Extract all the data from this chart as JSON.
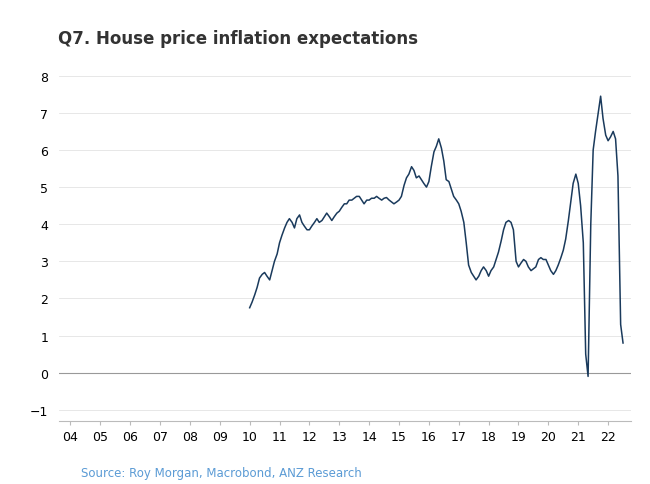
{
  "title": "Q7. House price inflation expectations",
  "source_text": "Source: Roy Morgan, Macrobond, ANZ Research",
  "line_color": "#1a3a5c",
  "background_color": "#ffffff",
  "ylim": [
    -1.3,
    8.5
  ],
  "yticks": [
    -1,
    0,
    1,
    2,
    3,
    4,
    5,
    6,
    7,
    8
  ],
  "xtick_labels": [
    "04",
    "05",
    "06",
    "07",
    "08",
    "09",
    "10",
    "11",
    "12",
    "13",
    "14",
    "15",
    "16",
    "17",
    "18",
    "19",
    "20",
    "21",
    "22"
  ],
  "xlim": [
    2003.6,
    2022.75
  ],
  "x_values": [
    2010.0,
    2010.08,
    2010.17,
    2010.25,
    2010.33,
    2010.42,
    2010.5,
    2010.58,
    2010.67,
    2010.75,
    2010.83,
    2010.92,
    2011.0,
    2011.08,
    2011.17,
    2011.25,
    2011.33,
    2011.42,
    2011.5,
    2011.58,
    2011.67,
    2011.75,
    2011.83,
    2011.92,
    2012.0,
    2012.08,
    2012.17,
    2012.25,
    2012.33,
    2012.42,
    2012.5,
    2012.58,
    2012.67,
    2012.75,
    2012.83,
    2012.92,
    2013.0,
    2013.08,
    2013.17,
    2013.25,
    2013.33,
    2013.42,
    2013.5,
    2013.58,
    2013.67,
    2013.75,
    2013.83,
    2013.92,
    2014.0,
    2014.08,
    2014.17,
    2014.25,
    2014.33,
    2014.42,
    2014.5,
    2014.58,
    2014.67,
    2014.75,
    2014.83,
    2014.92,
    2015.0,
    2015.08,
    2015.17,
    2015.25,
    2015.33,
    2015.42,
    2015.5,
    2015.58,
    2015.67,
    2015.75,
    2015.83,
    2015.92,
    2016.0,
    2016.08,
    2016.17,
    2016.25,
    2016.33,
    2016.42,
    2016.5,
    2016.58,
    2016.67,
    2016.75,
    2016.83,
    2016.92,
    2017.0,
    2017.08,
    2017.17,
    2017.25,
    2017.33,
    2017.42,
    2017.5,
    2017.58,
    2017.67,
    2017.75,
    2017.83,
    2017.92,
    2018.0,
    2018.08,
    2018.17,
    2018.25,
    2018.33,
    2018.42,
    2018.5,
    2018.58,
    2018.67,
    2018.75,
    2018.83,
    2018.92,
    2019.0,
    2019.08,
    2019.17,
    2019.25,
    2019.33,
    2019.42,
    2019.5,
    2019.58,
    2019.67,
    2019.75,
    2019.83,
    2019.92,
    2020.0,
    2020.08,
    2020.17,
    2020.25,
    2020.33,
    2020.42,
    2020.5,
    2020.58,
    2020.67,
    2020.75,
    2020.83,
    2020.92,
    2021.0,
    2021.08,
    2021.17,
    2021.25,
    2021.33,
    2021.42,
    2021.5,
    2021.58,
    2021.67,
    2021.75,
    2021.83,
    2021.92,
    2022.0,
    2022.08,
    2022.17,
    2022.25,
    2022.33,
    2022.42,
    2022.5
  ],
  "y_values": [
    1.75,
    1.9,
    2.1,
    2.3,
    2.55,
    2.65,
    2.7,
    2.6,
    2.5,
    2.75,
    3.0,
    3.2,
    3.5,
    3.7,
    3.9,
    4.05,
    4.15,
    4.05,
    3.9,
    4.15,
    4.25,
    4.05,
    3.95,
    3.85,
    3.85,
    3.95,
    4.05,
    4.15,
    4.05,
    4.1,
    4.2,
    4.3,
    4.2,
    4.1,
    4.2,
    4.3,
    4.35,
    4.45,
    4.55,
    4.55,
    4.65,
    4.65,
    4.7,
    4.75,
    4.75,
    4.65,
    4.55,
    4.65,
    4.65,
    4.7,
    4.7,
    4.75,
    4.7,
    4.65,
    4.7,
    4.72,
    4.65,
    4.6,
    4.55,
    4.6,
    4.65,
    4.75,
    5.05,
    5.25,
    5.35,
    5.55,
    5.45,
    5.25,
    5.3,
    5.2,
    5.1,
    5.0,
    5.15,
    5.55,
    5.95,
    6.1,
    6.3,
    6.05,
    5.7,
    5.2,
    5.15,
    4.95,
    4.75,
    4.65,
    4.55,
    4.35,
    4.05,
    3.5,
    2.9,
    2.7,
    2.6,
    2.5,
    2.6,
    2.75,
    2.85,
    2.75,
    2.6,
    2.75,
    2.85,
    3.05,
    3.25,
    3.55,
    3.85,
    4.05,
    4.1,
    4.05,
    3.85,
    3.0,
    2.85,
    2.95,
    3.05,
    3.0,
    2.85,
    2.75,
    2.8,
    2.85,
    3.05,
    3.1,
    3.05,
    3.05,
    2.9,
    2.75,
    2.65,
    2.75,
    2.9,
    3.1,
    3.3,
    3.6,
    4.1,
    4.6,
    5.1,
    5.35,
    5.1,
    4.5,
    3.5,
    0.5,
    -0.1,
    4.0,
    6.0,
    6.5,
    7.0,
    7.45,
    6.85,
    6.4,
    6.25,
    6.35,
    6.5,
    6.3,
    5.3,
    1.3,
    0.8
  ]
}
